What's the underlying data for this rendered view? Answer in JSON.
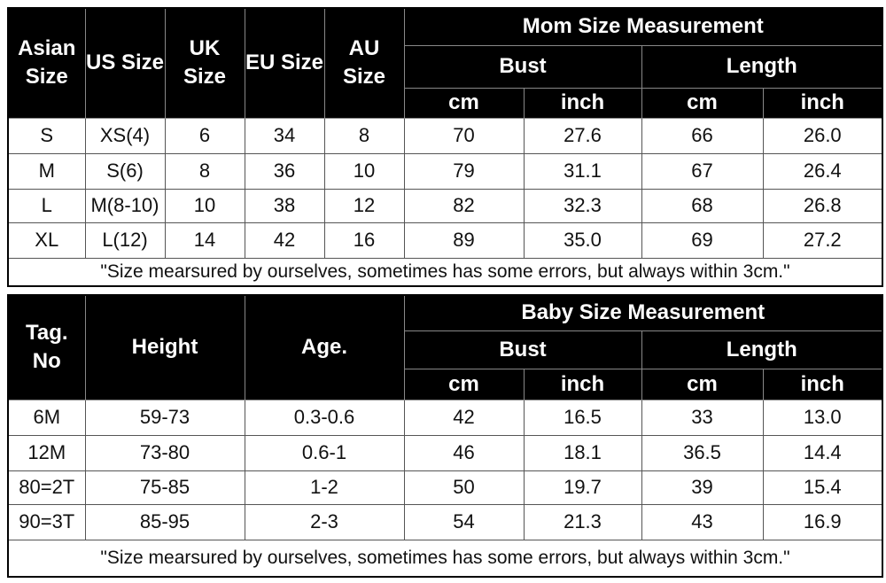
{
  "tables": [
    {
      "title": "Mom Size Measurement",
      "columns": [
        "Asian Size",
        "US Size",
        "UK Size",
        "EU Size",
        "AU Size"
      ],
      "groups": [
        "Bust",
        "Length"
      ],
      "units": [
        "cm",
        "inch",
        "cm",
        "inch"
      ],
      "rows": [
        [
          "S",
          "XS(4)",
          "6",
          "34",
          "8",
          "70",
          "27.6",
          "66",
          "26.0"
        ],
        [
          "M",
          "S(6)",
          "8",
          "36",
          "10",
          "79",
          "31.1",
          "67",
          "26.4"
        ],
        [
          "L",
          "M(8-10)",
          "10",
          "38",
          "12",
          "82",
          "32.3",
          "68",
          "26.8"
        ],
        [
          "XL",
          "L(12)",
          "14",
          "42",
          "16",
          "89",
          "35.0",
          "69",
          "27.2"
        ]
      ],
      "note": "\"Size mearsured by ourselves, sometimes has some errors, but always within 3cm.\""
    },
    {
      "title": "Baby Size Measurement",
      "columns": [
        "Tag. No",
        "Height",
        "Age."
      ],
      "groups": [
        "Bust",
        "Length"
      ],
      "units": [
        "cm",
        "inch",
        "cm",
        "inch"
      ],
      "rows": [
        [
          "6M",
          "59-73",
          "0.3-0.6",
          "42",
          "16.5",
          "33",
          "13.0"
        ],
        [
          "12M",
          "73-80",
          "0.6-1",
          "46",
          "18.1",
          "36.5",
          "14.4"
        ],
        [
          "80=2T",
          "75-85",
          "1-2",
          "50",
          "19.7",
          "39",
          "15.4"
        ],
        [
          "90=3T",
          "85-95",
          "2-3",
          "54",
          "21.3",
          "43",
          "16.9"
        ]
      ],
      "note": "\"Size mearsured by ourselves, sometimes has some errors, but always within 3cm.\""
    }
  ]
}
